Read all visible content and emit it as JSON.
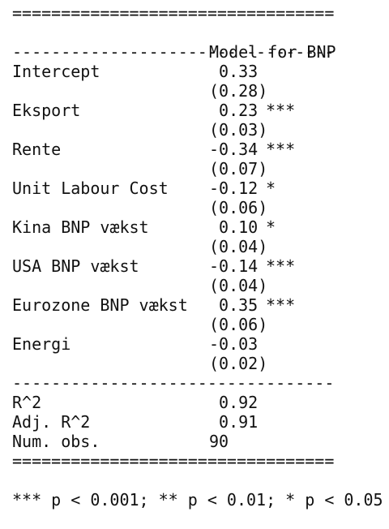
{
  "rule_double": "=================================",
  "rule_single": "---------------------------------",
  "header": {
    "model": "Model for BNP"
  },
  "coefficients": [
    {
      "name": "Intercept",
      "estimate": "0.33",
      "stars": "",
      "se": "(0.28)"
    },
    {
      "name": "Eksport",
      "estimate": "0.23",
      "stars": "***",
      "se": "(0.03)"
    },
    {
      "name": "Rente",
      "estimate": "-0.34",
      "stars": "***",
      "se": "(0.07)"
    },
    {
      "name": "Unit Labour Cost",
      "estimate": "-0.12",
      "stars": "*",
      "se": "(0.06)"
    },
    {
      "name": "Kina BNP vækst",
      "estimate": "0.10",
      "stars": "*",
      "se": "(0.04)"
    },
    {
      "name": "USA BNP vækst",
      "estimate": "-0.14",
      "stars": "***",
      "se": "(0.04)"
    },
    {
      "name": "Eurozone BNP vækst",
      "estimate": "0.35",
      "stars": "***",
      "se": "(0.06)"
    },
    {
      "name": "Energi",
      "estimate": "-0.03",
      "stars": "",
      "se": "(0.02)"
    }
  ],
  "stats": [
    {
      "name": "R^2",
      "value": "0.92"
    },
    {
      "name": "Adj. R^2",
      "value": "0.91"
    },
    {
      "name": "Num. obs.",
      "value": "90"
    }
  ],
  "footnote": "*** p < 0.001; ** p < 0.01; * p < 0.05"
}
